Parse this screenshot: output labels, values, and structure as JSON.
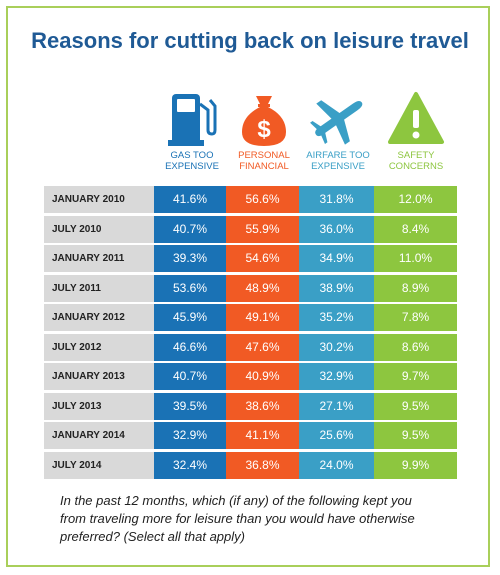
{
  "chart_data": {
    "type": "table",
    "title": "Reasons for cutting back on leisure travel",
    "columns": [
      {
        "name": "GAS TOO EXPENSIVE",
        "color": "#1a72b5",
        "icon": "gas-pump-icon"
      },
      {
        "name": "PERSONAL FINANCIAL",
        "color": "#f15a24",
        "icon": "money-bag-icon"
      },
      {
        "name": "AIRFARE TOO EXPENSIVE",
        "color": "#3a9fc6",
        "icon": "airplane-icon"
      },
      {
        "name": "SAFETY CONCERNS",
        "color": "#8dc63f",
        "icon": "warning-icon"
      }
    ],
    "categories": [
      "JANUARY 2010",
      "JULY 2010",
      "JANUARY 2011",
      "JULY 2011",
      "JANUARY 2012",
      "JULY 2012",
      "JANUARY 2013",
      "JULY 2013",
      "JANUARY 2014",
      "JULY 2014"
    ],
    "series": [
      {
        "name": "GAS TOO EXPENSIVE",
        "values": [
          "41.6%",
          "40.7%",
          "39.3%",
          "53.6%",
          "45.9%",
          "46.6%",
          "40.7%",
          "39.5%",
          "32.9%",
          "32.4%"
        ]
      },
      {
        "name": "PERSONAL FINANCIAL",
        "values": [
          "56.6%",
          "55.9%",
          "54.6%",
          "48.9%",
          "49.1%",
          "47.6%",
          "40.9%",
          "38.6%",
          "41.1%",
          "36.8%"
        ]
      },
      {
        "name": "AIRFARE TOO EXPENSIVE",
        "values": [
          "31.8%",
          "36.0%",
          "34.9%",
          "38.9%",
          "35.2%",
          "30.2%",
          "32.9%",
          "27.1%",
          "25.6%",
          "24.0%"
        ]
      },
      {
        "name": "SAFETY CONCERNS",
        "values": [
          "12.0%",
          "8.4%",
          "11.0%",
          "8.9%",
          "7.8%",
          "8.6%",
          "9.7%",
          "9.5%",
          "9.5%",
          "9.9%"
        ]
      }
    ],
    "footnote": "In the past 12 months, which (if any) of the following kept you from traveling more for leisure than you would have otherwise preferred? (Select all that apply)"
  }
}
